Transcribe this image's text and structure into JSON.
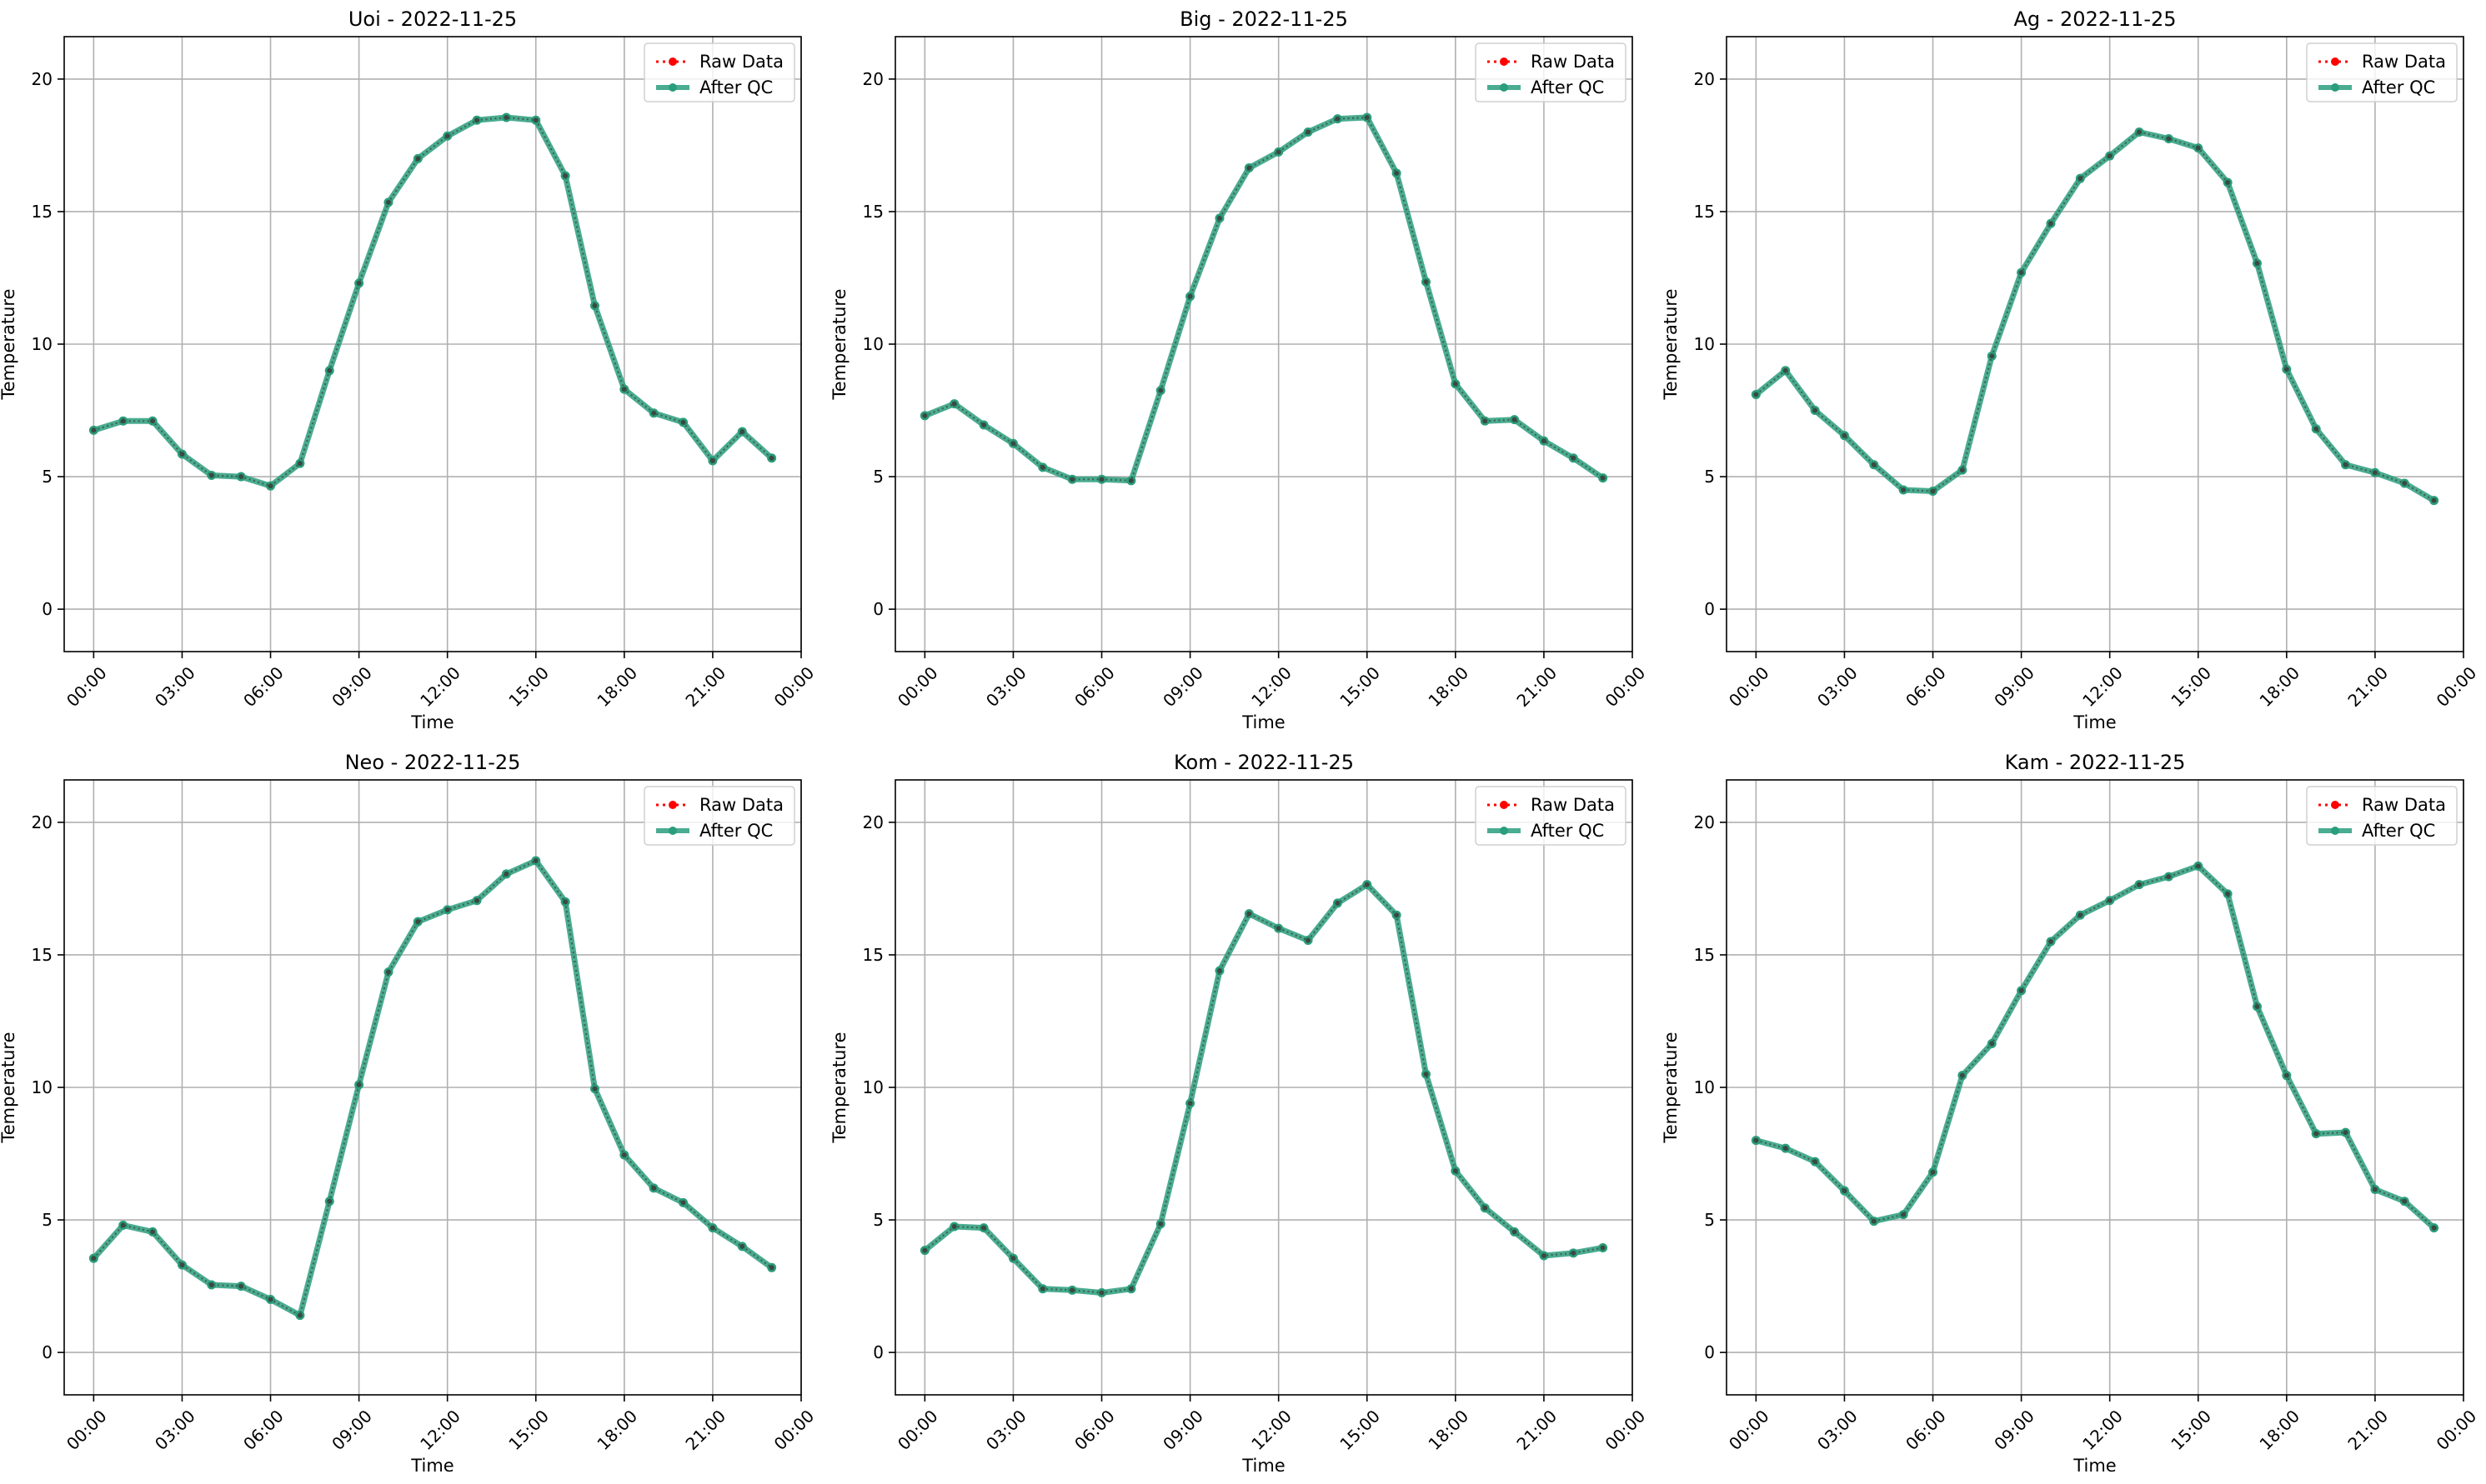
{
  "chart_data": [
    {
      "type": "line",
      "title": "Uoi - 2022-11-25",
      "xlabel": "Time",
      "ylabel": "Temperature",
      "x": [
        "00:00",
        "01:00",
        "02:00",
        "03:00",
        "04:00",
        "05:00",
        "06:00",
        "07:00",
        "08:00",
        "09:00",
        "10:00",
        "11:00",
        "12:00",
        "13:00",
        "14:00",
        "15:00",
        "16:00",
        "17:00",
        "18:00",
        "19:00",
        "20:00",
        "21:00",
        "22:00",
        "23:00"
      ],
      "xticks": [
        "00:00",
        "03:00",
        "06:00",
        "09:00",
        "12:00",
        "15:00",
        "18:00",
        "21:00",
        "00:00"
      ],
      "yticks": [
        "0",
        "5",
        "10",
        "15",
        "20"
      ],
      "ylim": [
        -1.6,
        21.6
      ],
      "grid": true,
      "legend": "top-right",
      "series": [
        {
          "name": "Raw Data",
          "color": "#ff0000",
          "style": "dotted",
          "values": [
            6.75,
            7.1,
            7.1,
            5.85,
            5.05,
            5.0,
            4.65,
            5.5,
            9.0,
            12.3,
            15.35,
            17.0,
            17.85,
            18.45,
            18.55,
            18.45,
            16.35,
            11.45,
            8.3,
            7.4,
            7.05,
            5.6,
            6.7,
            5.7
          ]
        },
        {
          "name": "After QC",
          "color": "#2a9d7c",
          "style": "solid",
          "values": [
            6.75,
            7.1,
            7.1,
            5.85,
            5.05,
            5.0,
            4.65,
            5.5,
            9.0,
            12.3,
            15.35,
            17.0,
            17.85,
            18.45,
            18.55,
            18.45,
            16.35,
            11.45,
            8.3,
            7.4,
            7.05,
            5.6,
            6.7,
            5.7
          ]
        }
      ]
    },
    {
      "type": "line",
      "title": "Big - 2022-11-25",
      "xlabel": "Time",
      "ylabel": "Temperature",
      "x": [
        "00:00",
        "01:00",
        "02:00",
        "03:00",
        "04:00",
        "05:00",
        "06:00",
        "07:00",
        "08:00",
        "09:00",
        "10:00",
        "11:00",
        "12:00",
        "13:00",
        "14:00",
        "15:00",
        "16:00",
        "17:00",
        "18:00",
        "19:00",
        "20:00",
        "21:00",
        "22:00",
        "23:00"
      ],
      "xticks": [
        "00:00",
        "03:00",
        "06:00",
        "09:00",
        "12:00",
        "15:00",
        "18:00",
        "21:00",
        "00:00"
      ],
      "yticks": [
        "0",
        "5",
        "10",
        "15",
        "20"
      ],
      "ylim": [
        -1.6,
        21.6
      ],
      "grid": true,
      "legend": "top-right",
      "series": [
        {
          "name": "Raw Data",
          "color": "#ff0000",
          "style": "dotted",
          "values": [
            7.3,
            7.75,
            6.95,
            6.25,
            5.35,
            4.9,
            4.9,
            4.85,
            8.25,
            11.8,
            14.75,
            16.65,
            17.25,
            18.0,
            18.5,
            18.55,
            16.45,
            12.35,
            8.5,
            7.1,
            7.15,
            6.35,
            5.7,
            4.95
          ]
        },
        {
          "name": "After QC",
          "color": "#2a9d7c",
          "style": "solid",
          "values": [
            7.3,
            7.75,
            6.95,
            6.25,
            5.35,
            4.9,
            4.9,
            4.85,
            8.25,
            11.8,
            14.75,
            16.65,
            17.25,
            18.0,
            18.5,
            18.55,
            16.45,
            12.35,
            8.5,
            7.1,
            7.15,
            6.35,
            5.7,
            4.95
          ]
        }
      ]
    },
    {
      "type": "line",
      "title": "Ag - 2022-11-25",
      "xlabel": "Time",
      "ylabel": "Temperature",
      "x": [
        "00:00",
        "01:00",
        "02:00",
        "03:00",
        "04:00",
        "05:00",
        "06:00",
        "07:00",
        "08:00",
        "09:00",
        "10:00",
        "11:00",
        "12:00",
        "13:00",
        "14:00",
        "15:00",
        "16:00",
        "17:00",
        "18:00",
        "19:00",
        "20:00",
        "21:00",
        "22:00",
        "23:00"
      ],
      "xticks": [
        "00:00",
        "03:00",
        "06:00",
        "09:00",
        "12:00",
        "15:00",
        "18:00",
        "21:00",
        "00:00"
      ],
      "yticks": [
        "0",
        "5",
        "10",
        "15",
        "20"
      ],
      "ylim": [
        -1.6,
        21.6
      ],
      "grid": true,
      "legend": "top-right",
      "series": [
        {
          "name": "Raw Data",
          "color": "#ff0000",
          "style": "dotted",
          "values": [
            8.1,
            9.0,
            7.5,
            6.55,
            5.45,
            4.5,
            4.45,
            5.25,
            9.55,
            12.7,
            14.55,
            16.25,
            17.1,
            18.0,
            17.75,
            17.4,
            16.1,
            13.05,
            9.05,
            6.8,
            5.45,
            5.15,
            4.75,
            4.1
          ]
        },
        {
          "name": "After QC",
          "color": "#2a9d7c",
          "style": "solid",
          "values": [
            8.1,
            9.0,
            7.5,
            6.55,
            5.45,
            4.5,
            4.45,
            5.25,
            9.55,
            12.7,
            14.55,
            16.25,
            17.1,
            18.0,
            17.75,
            17.4,
            16.1,
            13.05,
            9.05,
            6.8,
            5.45,
            5.15,
            4.75,
            4.1
          ]
        }
      ]
    },
    {
      "type": "line",
      "title": "Neo - 2022-11-25",
      "xlabel": "Time",
      "ylabel": "Temperature",
      "x": [
        "00:00",
        "01:00",
        "02:00",
        "03:00",
        "04:00",
        "05:00",
        "06:00",
        "07:00",
        "08:00",
        "09:00",
        "10:00",
        "11:00",
        "12:00",
        "13:00",
        "14:00",
        "15:00",
        "16:00",
        "17:00",
        "18:00",
        "19:00",
        "20:00",
        "21:00",
        "22:00",
        "23:00"
      ],
      "xticks": [
        "00:00",
        "03:00",
        "06:00",
        "09:00",
        "12:00",
        "15:00",
        "18:00",
        "21:00",
        "00:00"
      ],
      "yticks": [
        "0",
        "5",
        "10",
        "15",
        "20"
      ],
      "ylim": [
        -1.6,
        21.6
      ],
      "grid": true,
      "legend": "top-right",
      "series": [
        {
          "name": "Raw Data",
          "color": "#ff0000",
          "style": "dotted",
          "values": [
            3.55,
            4.8,
            4.55,
            3.3,
            2.55,
            2.5,
            2.0,
            1.4,
            5.7,
            10.1,
            14.35,
            16.25,
            16.7,
            17.05,
            18.05,
            18.55,
            17.0,
            9.95,
            7.45,
            6.2,
            5.65,
            4.7,
            4.0,
            3.2
          ]
        },
        {
          "name": "After QC",
          "color": "#2a9d7c",
          "style": "solid",
          "values": [
            3.55,
            4.8,
            4.55,
            3.3,
            2.55,
            2.5,
            2.0,
            1.4,
            5.7,
            10.1,
            14.35,
            16.25,
            16.7,
            17.05,
            18.05,
            18.55,
            17.0,
            9.95,
            7.45,
            6.2,
            5.65,
            4.7,
            4.0,
            3.2
          ]
        }
      ]
    },
    {
      "type": "line",
      "title": "Kom - 2022-11-25",
      "xlabel": "Time",
      "ylabel": "Temperature",
      "x": [
        "00:00",
        "01:00",
        "02:00",
        "03:00",
        "04:00",
        "05:00",
        "06:00",
        "07:00",
        "08:00",
        "09:00",
        "10:00",
        "11:00",
        "12:00",
        "13:00",
        "14:00",
        "15:00",
        "16:00",
        "17:00",
        "18:00",
        "19:00",
        "20:00",
        "21:00",
        "22:00",
        "23:00"
      ],
      "xticks": [
        "00:00",
        "03:00",
        "06:00",
        "09:00",
        "12:00",
        "15:00",
        "18:00",
        "21:00",
        "00:00"
      ],
      "yticks": [
        "0",
        "5",
        "10",
        "15",
        "20"
      ],
      "ylim": [
        -1.6,
        21.6
      ],
      "grid": true,
      "legend": "top-right",
      "series": [
        {
          "name": "Raw Data",
          "color": "#ff0000",
          "style": "dotted",
          "values": [
            3.85,
            4.75,
            4.7,
            3.55,
            2.4,
            2.35,
            2.25,
            2.4,
            4.85,
            9.4,
            14.4,
            16.55,
            16.0,
            15.55,
            16.95,
            17.65,
            16.5,
            10.5,
            6.85,
            5.45,
            4.55,
            3.65,
            3.75,
            3.95
          ]
        },
        {
          "name": "After QC",
          "color": "#2a9d7c",
          "style": "solid",
          "values": [
            3.85,
            4.75,
            4.7,
            3.55,
            2.4,
            2.35,
            2.25,
            2.4,
            4.85,
            9.4,
            14.4,
            16.55,
            16.0,
            15.55,
            16.95,
            17.65,
            16.5,
            10.5,
            6.85,
            5.45,
            4.55,
            3.65,
            3.75,
            3.95
          ]
        }
      ]
    },
    {
      "type": "line",
      "title": "Kam - 2022-11-25",
      "xlabel": "Time",
      "ylabel": "Temperature",
      "x": [
        "00:00",
        "01:00",
        "02:00",
        "03:00",
        "04:00",
        "05:00",
        "06:00",
        "07:00",
        "08:00",
        "09:00",
        "10:00",
        "11:00",
        "12:00",
        "13:00",
        "14:00",
        "15:00",
        "16:00",
        "17:00",
        "18:00",
        "19:00",
        "20:00",
        "21:00",
        "22:00",
        "23:00"
      ],
      "xticks": [
        "00:00",
        "03:00",
        "06:00",
        "09:00",
        "12:00",
        "15:00",
        "18:00",
        "21:00",
        "00:00"
      ],
      "yticks": [
        "0",
        "5",
        "10",
        "15",
        "20"
      ],
      "ylim": [
        -1.6,
        21.6
      ],
      "grid": true,
      "legend": "top-right",
      "series": [
        {
          "name": "Raw Data",
          "color": "#ff0000",
          "style": "dotted",
          "values": [
            8.0,
            7.7,
            7.2,
            6.1,
            4.95,
            5.2,
            6.8,
            10.45,
            11.65,
            13.65,
            15.5,
            16.5,
            17.05,
            17.65,
            17.95,
            18.35,
            17.3,
            13.05,
            10.45,
            8.25,
            8.3,
            6.15,
            5.7,
            4.7
          ]
        },
        {
          "name": "After QC",
          "color": "#2a9d7c",
          "style": "solid",
          "values": [
            8.0,
            7.7,
            7.2,
            6.1,
            4.95,
            5.2,
            6.8,
            10.45,
            11.65,
            13.65,
            15.5,
            16.5,
            17.05,
            17.65,
            17.95,
            18.35,
            17.3,
            13.05,
            10.45,
            8.25,
            8.3,
            6.15,
            5.7,
            4.7
          ]
        }
      ]
    }
  ]
}
